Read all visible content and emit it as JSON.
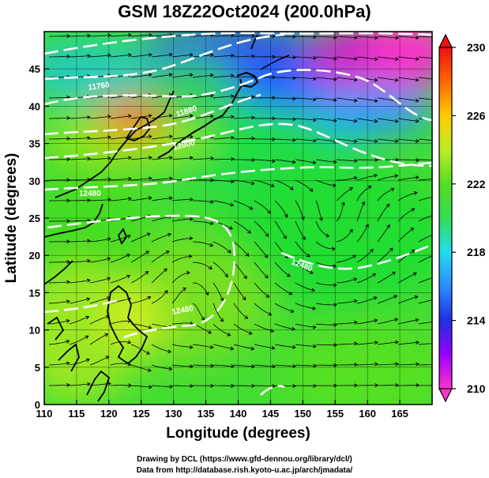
{
  "title": "GSM 18Z22Oct2024 (200.0hPa)",
  "xlabel": "Longitude (degrees)",
  "ylabel": "Latitude  (degrees)",
  "credits": [
    "Drawing by DCL (https://www.gfd-dennou.org/library/dcl/)",
    "Data from http://database.rish.kyoto-u.ac.jp/arch/jmadata/"
  ],
  "map": {
    "lon_range": [
      110,
      170
    ],
    "lat_range": [
      0,
      50
    ],
    "x_ticks": [
      110,
      115,
      120,
      125,
      130,
      135,
      140,
      145,
      150,
      155,
      160,
      165
    ],
    "y_ticks": [
      0,
      5,
      10,
      15,
      20,
      25,
      30,
      35,
      40,
      45
    ],
    "colorbar_ticks": [
      210,
      214,
      218,
      222,
      226,
      230
    ],
    "colorbar_range": [
      210,
      230
    ],
    "colorbar_colors": [
      "#ff33cc",
      "#9900ff",
      "#1f2fe0",
      "#2c8cff",
      "#22ddee",
      "#33dd55",
      "#55dd22",
      "#bbee22",
      "#ffcc00",
      "#ff6600",
      "#ee1111"
    ],
    "contour_color": "#ffffff",
    "streamline_color": "#000000",
    "coast_color": "#000000"
  }
}
